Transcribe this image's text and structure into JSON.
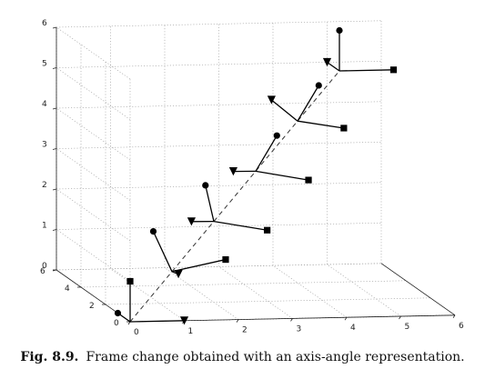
{
  "caption": {
    "label": "Fig. 8.9.",
    "text": "Frame change obtained with an axis-angle representation."
  },
  "chart_data": {
    "type": "3d-line",
    "title": "",
    "xlabel": "",
    "ylabel": "",
    "zlabel": "",
    "xlim": [
      0,
      6
    ],
    "ylim": [
      0,
      6
    ],
    "zlim": [
      0,
      6
    ],
    "x_ticks": [
      "0",
      "1",
      "2",
      "3",
      "4",
      "5",
      "6"
    ],
    "y_ticks": [
      "0",
      "2",
      "4",
      "6"
    ],
    "z_ticks": [
      "0",
      "1",
      "2",
      "3",
      "4",
      "5",
      "6"
    ],
    "grid": true,
    "rotation_axis": {
      "from": [
        0,
        0,
        0
      ],
      "to": [
        5,
        5,
        5
      ],
      "style": "dashed"
    },
    "frames": [
      {
        "origin": [
          0,
          0,
          0
        ],
        "x_end": [
          1,
          0,
          0
        ],
        "y_end": [
          0,
          1,
          0
        ],
        "z_end": [
          0,
          0,
          1
        ]
      },
      {
        "origin": [
          1,
          1,
          1
        ],
        "x_end": [
          1.33,
          1.93,
          0.73
        ],
        "y_end": [
          0.73,
          1.33,
          1.93
        ],
        "z_end": [
          1.93,
          0.73,
          1.33
        ]
      },
      {
        "origin": [
          2,
          2,
          2
        ],
        "x_end": [
          1.8,
          2.94,
          1.8
        ],
        "y_end": [
          1.8,
          1.8,
          2.94
        ],
        "z_end": [
          2.94,
          1.8,
          1.8
        ]
      },
      {
        "origin": [
          3,
          3,
          3
        ],
        "x_end": [
          2.8,
          3.94,
          2.8
        ],
        "y_end": [
          3.33,
          2.73,
          3.93
        ],
        "z_end": [
          3.93,
          2.8,
          2.8
        ]
      },
      {
        "origin": [
          4,
          4,
          4
        ],
        "x_end": [
          3.73,
          4.93,
          4.33
        ],
        "y_end": [
          4.33,
          3.73,
          4.93
        ],
        "z_end": [
          4.93,
          4.33,
          3.73
        ]
      },
      {
        "origin": [
          5,
          5,
          5
        ],
        "x_end": [
          5,
          6,
          5
        ],
        "y_end": [
          5,
          5,
          6
        ],
        "z_end": [
          6,
          5,
          5
        ]
      }
    ],
    "markers": {
      "x_end": "triangle",
      "y_end": "circle",
      "z_end": "square"
    }
  }
}
